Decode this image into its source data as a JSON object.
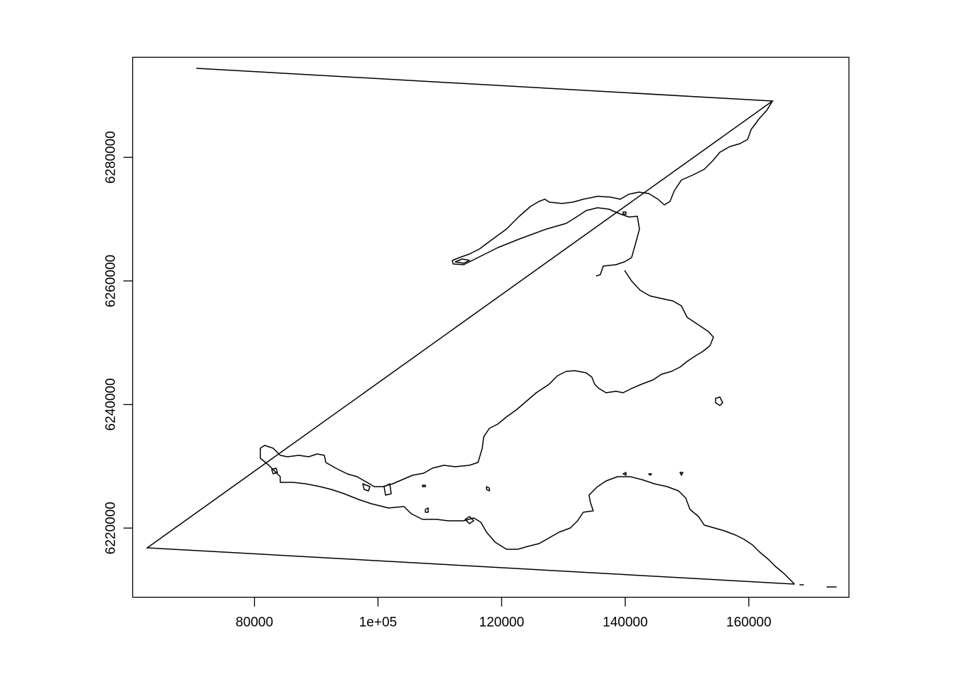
{
  "map": {
    "x_ticks": [
      {
        "value": 80000,
        "label": "80000"
      },
      {
        "value": 100000,
        "label": "1e+05"
      },
      {
        "value": 120000,
        "label": "120000"
      },
      {
        "value": 140000,
        "label": "140000"
      },
      {
        "value": 160000,
        "label": "160000"
      }
    ],
    "y_ticks": [
      {
        "value": 6220000,
        "label": "6220000"
      },
      {
        "value": 6240000,
        "label": "6240000"
      },
      {
        "value": 6260000,
        "label": "6260000"
      },
      {
        "value": 6280000,
        "label": "6280000"
      }
    ],
    "xlim": [
      60300,
      176200
    ],
    "ylim": [
      6208800,
      6296200
    ],
    "line_color": "#000000",
    "background": "#ffffff"
  }
}
